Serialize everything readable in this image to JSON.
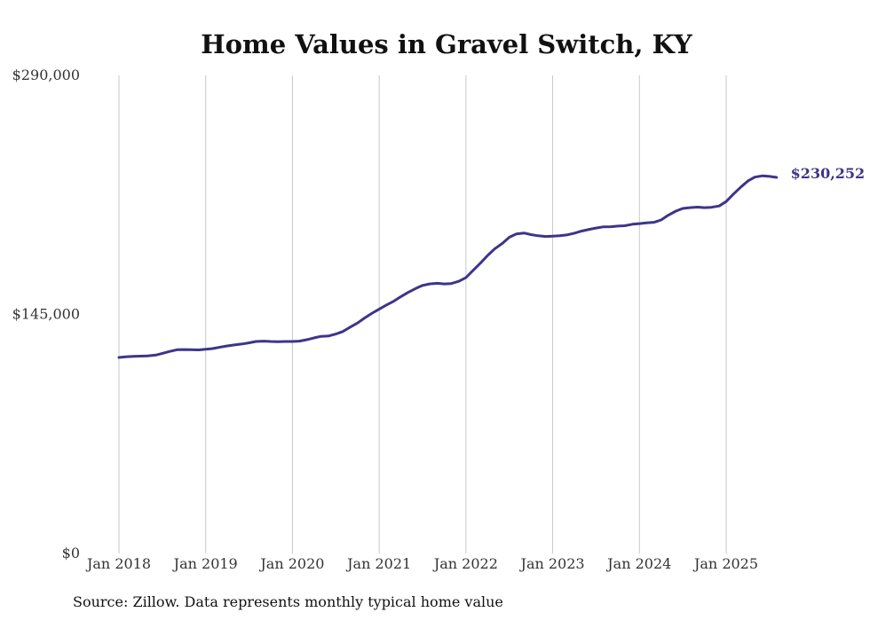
{
  "chart_data": {
    "type": "line",
    "title": "Home Values in Gravel Switch, KY",
    "xlabel": "",
    "ylabel": "",
    "ylim": [
      0,
      290000
    ],
    "y_ticks": [
      {
        "value": 0,
        "label": "$0"
      },
      {
        "value": 145000,
        "label": "$145,000"
      },
      {
        "value": 290000,
        "label": "$290,000"
      }
    ],
    "x_ticks": [
      {
        "value": 2018,
        "label": "Jan 2018"
      },
      {
        "value": 2019,
        "label": "Jan 2019"
      },
      {
        "value": 2020,
        "label": "Jan 2020"
      },
      {
        "value": 2021,
        "label": "Jan 2021"
      },
      {
        "value": 2022,
        "label": "Jan 2022"
      },
      {
        "value": 2023,
        "label": "Jan 2023"
      },
      {
        "value": 2024,
        "label": "Jan 2024"
      },
      {
        "value": 2025,
        "label": "Jan 2025"
      }
    ],
    "xlim": [
      2017.75,
      2025.95
    ],
    "grid": "vertical",
    "color": "#3d3589",
    "series": [
      {
        "name": "Typical home value",
        "end_label": "$230,252",
        "points": [
          [
            2018.0,
            118900
          ],
          [
            2018.08,
            119300
          ],
          [
            2018.17,
            119600
          ],
          [
            2018.25,
            119700
          ],
          [
            2018.33,
            119900
          ],
          [
            2018.42,
            120300
          ],
          [
            2018.5,
            121400
          ],
          [
            2018.58,
            122500
          ],
          [
            2018.67,
            123600
          ],
          [
            2018.75,
            123700
          ],
          [
            2018.83,
            123600
          ],
          [
            2018.92,
            123500
          ],
          [
            2019.0,
            123900
          ],
          [
            2019.08,
            124300
          ],
          [
            2019.17,
            125200
          ],
          [
            2019.25,
            125900
          ],
          [
            2019.33,
            126500
          ],
          [
            2019.42,
            127100
          ],
          [
            2019.5,
            127800
          ],
          [
            2019.58,
            128600
          ],
          [
            2019.67,
            128800
          ],
          [
            2019.75,
            128600
          ],
          [
            2019.83,
            128500
          ],
          [
            2019.92,
            128600
          ],
          [
            2020.0,
            128600
          ],
          [
            2020.08,
            128800
          ],
          [
            2020.17,
            129700
          ],
          [
            2020.25,
            130800
          ],
          [
            2020.33,
            131700
          ],
          [
            2020.42,
            132000
          ],
          [
            2020.5,
            133100
          ],
          [
            2020.58,
            134600
          ],
          [
            2020.67,
            137400
          ],
          [
            2020.75,
            139800
          ],
          [
            2020.83,
            142800
          ],
          [
            2020.92,
            145800
          ],
          [
            2021.0,
            148200
          ],
          [
            2021.08,
            150600
          ],
          [
            2021.17,
            153100
          ],
          [
            2021.25,
            155800
          ],
          [
            2021.33,
            158300
          ],
          [
            2021.42,
            160700
          ],
          [
            2021.5,
            162600
          ],
          [
            2021.58,
            163500
          ],
          [
            2021.67,
            163900
          ],
          [
            2021.75,
            163500
          ],
          [
            2021.83,
            163700
          ],
          [
            2021.92,
            165100
          ],
          [
            2022.0,
            167400
          ],
          [
            2022.08,
            171600
          ],
          [
            2022.17,
            176300
          ],
          [
            2022.25,
            180800
          ],
          [
            2022.33,
            184700
          ],
          [
            2022.42,
            188100
          ],
          [
            2022.5,
            191800
          ],
          [
            2022.58,
            193800
          ],
          [
            2022.67,
            194400
          ],
          [
            2022.75,
            193400
          ],
          [
            2022.83,
            192700
          ],
          [
            2022.92,
            192300
          ],
          [
            2023.0,
            192500
          ],
          [
            2023.08,
            192700
          ],
          [
            2023.17,
            193300
          ],
          [
            2023.25,
            194300
          ],
          [
            2023.33,
            195500
          ],
          [
            2023.42,
            196600
          ],
          [
            2023.5,
            197400
          ],
          [
            2023.58,
            198100
          ],
          [
            2023.67,
            198200
          ],
          [
            2023.75,
            198600
          ],
          [
            2023.83,
            198800
          ],
          [
            2023.92,
            199700
          ],
          [
            2024.0,
            200100
          ],
          [
            2024.08,
            200500
          ],
          [
            2024.17,
            200900
          ],
          [
            2024.25,
            202300
          ],
          [
            2024.33,
            205100
          ],
          [
            2024.42,
            207700
          ],
          [
            2024.5,
            209300
          ],
          [
            2024.58,
            209800
          ],
          [
            2024.67,
            210100
          ],
          [
            2024.75,
            209800
          ],
          [
            2024.83,
            210000
          ],
          [
            2024.92,
            210800
          ],
          [
            2025.0,
            213500
          ],
          [
            2025.08,
            217800
          ],
          [
            2025.17,
            222300
          ],
          [
            2025.25,
            225900
          ],
          [
            2025.33,
            228300
          ],
          [
            2025.42,
            229100
          ],
          [
            2025.5,
            228700
          ],
          [
            2025.58,
            228100
          ],
          [
            2025.6,
            230252
          ]
        ]
      }
    ],
    "source": "Source: Zillow. Data represents monthly typical home value"
  }
}
